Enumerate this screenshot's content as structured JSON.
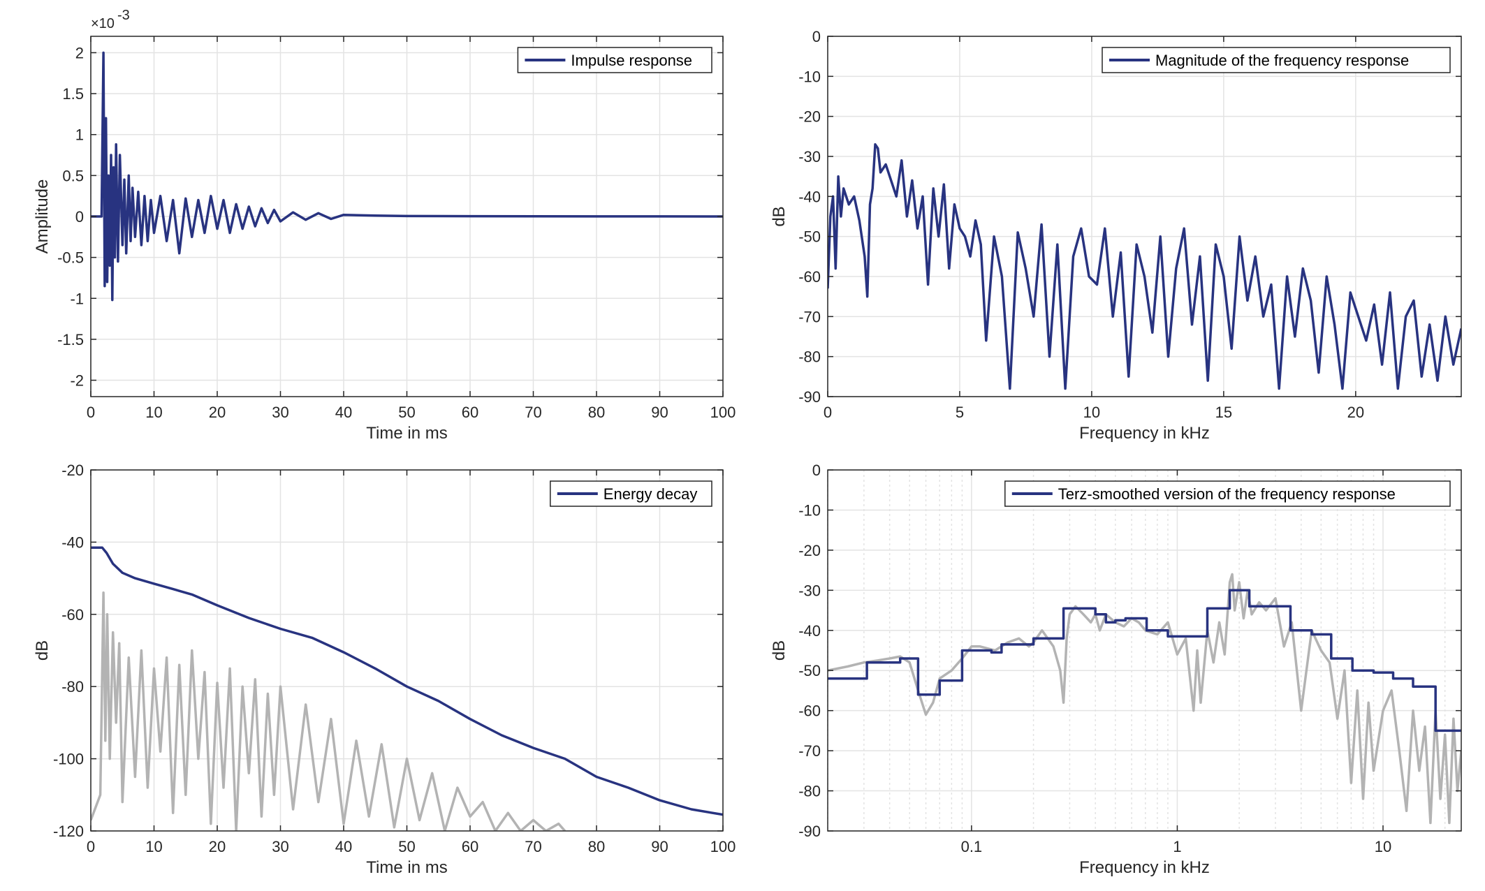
{
  "colors": {
    "series": "#283380",
    "gray": "#b3b3b3",
    "grid": "#e3e3e3",
    "axis": "#262626"
  },
  "chart_data": [
    {
      "type": "line",
      "title": "",
      "xlabel": "Time in ms",
      "ylabel": "Amplitude",
      "exponent_label": "×10",
      "exponent_power": "-3",
      "xlim": [
        0,
        100
      ],
      "ylim": [
        -2.2,
        2.2
      ],
      "xticks": [
        0,
        10,
        20,
        30,
        40,
        50,
        60,
        70,
        80,
        90,
        100
      ],
      "yticks": [
        -2,
        -1.5,
        -1,
        -0.5,
        0,
        0.5,
        1,
        1.5,
        2
      ],
      "ytick_labels": [
        "-2",
        "-1.5",
        "-1",
        "-0.5",
        "0",
        "0.5",
        "1",
        "1.5",
        "2"
      ],
      "grid": true,
      "legend_position": "top-right",
      "series": [
        {
          "name": "Impulse response",
          "x": [
            0,
            1.7,
            2.0,
            2.2,
            2.4,
            2.6,
            2.8,
            3.0,
            3.2,
            3.4,
            3.6,
            3.8,
            4.0,
            4.3,
            4.6,
            5.0,
            5.3,
            5.6,
            6.0,
            6.3,
            6.6,
            7.0,
            7.5,
            8.0,
            8.5,
            9.0,
            9.5,
            10,
            11,
            12,
            13,
            14,
            15,
            16,
            17,
            18,
            19,
            20,
            21,
            22,
            23,
            24,
            25,
            26,
            27,
            28,
            29,
            30,
            32,
            34,
            36,
            38,
            40,
            45,
            50,
            60,
            70,
            80,
            90,
            100
          ],
          "y": [
            0,
            0,
            2.0,
            -0.85,
            1.2,
            -0.8,
            0.5,
            -0.6,
            0.75,
            -1.02,
            0.6,
            -0.5,
            0.88,
            -0.55,
            0.75,
            -0.35,
            0.45,
            -0.45,
            0.5,
            -0.3,
            0.35,
            -0.25,
            0.3,
            -0.35,
            0.25,
            -0.3,
            0.2,
            -0.2,
            0.25,
            -0.3,
            0.2,
            -0.45,
            0.22,
            -0.25,
            0.2,
            -0.2,
            0.25,
            -0.15,
            0.2,
            -0.2,
            0.15,
            -0.15,
            0.12,
            -0.12,
            0.1,
            -0.08,
            0.08,
            -0.06,
            0.05,
            -0.04,
            0.04,
            -0.03,
            0.02,
            0.01,
            0.005,
            0.003,
            0.002,
            0.001,
            0.001,
            0
          ]
        }
      ]
    },
    {
      "type": "line",
      "title": "",
      "xlabel": "Frequency in kHz",
      "ylabel": "dB",
      "xlim": [
        0,
        24
      ],
      "ylim": [
        -90,
        0
      ],
      "xticks": [
        0,
        5,
        10,
        15,
        20
      ],
      "yticks": [
        0,
        -10,
        -20,
        -30,
        -40,
        -50,
        -60,
        -70,
        -80,
        -90
      ],
      "grid": true,
      "legend_position": "top-right",
      "series": [
        {
          "name": "Magnitude of the frequency response",
          "x": [
            0,
            0.1,
            0.2,
            0.3,
            0.4,
            0.5,
            0.6,
            0.8,
            1.0,
            1.2,
            1.4,
            1.5,
            1.6,
            1.7,
            1.8,
            1.9,
            2.0,
            2.2,
            2.4,
            2.6,
            2.8,
            3.0,
            3.2,
            3.4,
            3.6,
            3.8,
            4.0,
            4.2,
            4.4,
            4.6,
            4.8,
            5.0,
            5.2,
            5.4,
            5.6,
            5.8,
            6.0,
            6.3,
            6.6,
            6.9,
            7.2,
            7.5,
            7.8,
            8.1,
            8.4,
            8.7,
            9.0,
            9.3,
            9.6,
            9.9,
            10.2,
            10.5,
            10.8,
            11.1,
            11.4,
            11.7,
            12.0,
            12.3,
            12.6,
            12.9,
            13.2,
            13.5,
            13.8,
            14.1,
            14.4,
            14.7,
            15.0,
            15.3,
            15.6,
            15.9,
            16.2,
            16.5,
            16.8,
            17.1,
            17.4,
            17.7,
            18.0,
            18.3,
            18.6,
            18.9,
            19.2,
            19.5,
            19.8,
            20.1,
            20.4,
            20.7,
            21.0,
            21.3,
            21.6,
            21.9,
            22.2,
            22.5,
            22.8,
            23.1,
            23.4,
            23.7,
            24.0
          ],
          "y": [
            -63,
            -45,
            -40,
            -58,
            -35,
            -45,
            -38,
            -42,
            -40,
            -46,
            -55,
            -65,
            -42,
            -38,
            -27,
            -28,
            -34,
            -32,
            -36,
            -40,
            -31,
            -45,
            -36,
            -48,
            -40,
            -62,
            -38,
            -50,
            -37,
            -58,
            -42,
            -48,
            -50,
            -55,
            -46,
            -52,
            -76,
            -50,
            -60,
            -88,
            -49,
            -58,
            -70,
            -47,
            -80,
            -52,
            -88,
            -55,
            -48,
            -60,
            -62,
            -48,
            -70,
            -54,
            -85,
            -52,
            -60,
            -74,
            -50,
            -80,
            -58,
            -48,
            -72,
            -55,
            -86,
            -52,
            -60,
            -78,
            -50,
            -66,
            -55,
            -70,
            -62,
            -88,
            -60,
            -75,
            -58,
            -66,
            -84,
            -60,
            -72,
            -88,
            -64,
            -70,
            -76,
            -67,
            -82,
            -64,
            -88,
            -70,
            -66,
            -85,
            -72,
            -86,
            -70,
            -82,
            -73
          ]
        }
      ]
    },
    {
      "type": "line",
      "title": "",
      "xlabel": "Time in ms",
      "ylabel": "dB",
      "xlim": [
        0,
        100
      ],
      "ylim": [
        -120,
        -20
      ],
      "xticks": [
        0,
        10,
        20,
        30,
        40,
        50,
        60,
        70,
        80,
        90,
        100
      ],
      "yticks": [
        -20,
        -40,
        -60,
        -80,
        -100,
        -120
      ],
      "grid": true,
      "legend_position": "top-right",
      "series": [
        {
          "name": "Energy decay",
          "x": [
            0,
            1.8,
            2.5,
            3.5,
            5,
            7,
            10,
            13,
            16,
            20,
            25,
            30,
            35,
            40,
            45,
            50,
            55,
            60,
            65,
            70,
            75,
            80,
            85,
            90,
            95,
            100
          ],
          "y": [
            -41.5,
            -41.5,
            -43,
            -46,
            -48.5,
            -50,
            -51.5,
            -53,
            -54.5,
            -57.5,
            -61,
            -64,
            -66.5,
            -70.5,
            -75,
            -80,
            -84,
            -89,
            -93.5,
            -97,
            -100,
            -105,
            -108,
            -111.5,
            -114,
            -115.5
          ]
        },
        {
          "name": "",
          "color_key": "gray",
          "x": [
            0,
            1.5,
            2.0,
            2.3,
            2.6,
            3.0,
            3.5,
            4.0,
            4.5,
            5.0,
            6.0,
            7.0,
            8.0,
            9.0,
            10,
            11,
            12,
            13,
            14,
            15,
            16,
            17,
            18,
            19,
            20,
            21,
            22,
            23,
            24,
            25,
            26,
            27,
            28,
            29,
            30,
            32,
            34,
            36,
            38,
            40,
            42,
            44,
            46,
            48,
            50,
            52,
            54,
            56,
            58,
            60,
            62,
            64,
            66,
            68,
            70,
            72,
            74,
            75
          ],
          "y": [
            -117,
            -110,
            -54,
            -95,
            -60,
            -100,
            -65,
            -90,
            -68,
            -112,
            -72,
            -105,
            -70,
            -108,
            -75,
            -98,
            -72,
            -115,
            -74,
            -110,
            -70,
            -100,
            -76,
            -118,
            -79,
            -108,
            -75,
            -120,
            -80,
            -104,
            -78,
            -116,
            -82,
            -110,
            -80,
            -114,
            -85,
            -112,
            -89,
            -118,
            -95,
            -116,
            -96,
            -119,
            -100,
            -117,
            -104,
            -120,
            -108,
            -116,
            -112,
            -120,
            -115,
            -120,
            -117,
            -120,
            -118,
            -120
          ]
        }
      ]
    },
    {
      "type": "line",
      "title": "",
      "xlabel": "Frequency in kHz",
      "ylabel": "dB",
      "x_scale": "log",
      "xlim": [
        0.02,
        24
      ],
      "ylim": [
        -90,
        0
      ],
      "xticks": [
        0.1,
        1,
        10
      ],
      "xtick_labels": [
        "0.1",
        "1",
        "10"
      ],
      "yticks": [
        0,
        -10,
        -20,
        -30,
        -40,
        -50,
        -60,
        -70,
        -80,
        -90
      ],
      "grid": true,
      "legend_position": "top-right",
      "series": [
        {
          "name": "Terz-smoothed version of the frequency response",
          "steps": [
            [
              0.02,
              0.031,
              -52
            ],
            [
              0.031,
              0.045,
              -48
            ],
            [
              0.045,
              0.055,
              -47
            ],
            [
              0.055,
              0.07,
              -56
            ],
            [
              0.07,
              0.09,
              -52.5
            ],
            [
              0.09,
              0.125,
              -45
            ],
            [
              0.125,
              0.14,
              -45.5
            ],
            [
              0.14,
              0.2,
              -43.5
            ],
            [
              0.2,
              0.28,
              -42
            ],
            [
              0.28,
              0.4,
              -34.5
            ],
            [
              0.4,
              0.45,
              -36
            ],
            [
              0.45,
              0.5,
              -38
            ],
            [
              0.5,
              0.56,
              -37.5
            ],
            [
              0.56,
              0.71,
              -37
            ],
            [
              0.71,
              0.9,
              -40
            ],
            [
              0.9,
              1.4,
              -41.5
            ],
            [
              1.4,
              1.8,
              -34.5
            ],
            [
              1.8,
              2.24,
              -30
            ],
            [
              2.24,
              2.8,
              -34
            ],
            [
              2.8,
              3.55,
              -34
            ],
            [
              3.55,
              4.5,
              -40
            ],
            [
              4.5,
              5.6,
              -41
            ],
            [
              5.6,
              7.1,
              -47
            ],
            [
              7.1,
              9.0,
              -50
            ],
            [
              9.0,
              11.2,
              -50.5
            ],
            [
              11.2,
              14.0,
              -52
            ],
            [
              14.0,
              18.0,
              -54
            ],
            [
              18.0,
              24.0,
              -65
            ]
          ]
        },
        {
          "name": "",
          "color_key": "gray",
          "x": [
            0.02,
            0.025,
            0.03,
            0.035,
            0.04,
            0.045,
            0.05,
            0.055,
            0.06,
            0.065,
            0.07,
            0.08,
            0.09,
            0.1,
            0.11,
            0.13,
            0.15,
            0.17,
            0.19,
            0.2,
            0.22,
            0.25,
            0.27,
            0.28,
            0.29,
            0.3,
            0.32,
            0.35,
            0.38,
            0.4,
            0.42,
            0.45,
            0.5,
            0.55,
            0.6,
            0.65,
            0.7,
            0.8,
            0.9,
            1.0,
            1.1,
            1.2,
            1.25,
            1.3,
            1.4,
            1.5,
            1.6,
            1.7,
            1.8,
            1.85,
            1.9,
            2.0,
            2.1,
            2.2,
            2.3,
            2.5,
            2.7,
            3.0,
            3.3,
            3.6,
            4.0,
            4.5,
            5.0,
            5.5,
            6.0,
            6.5,
            7.0,
            7.5,
            8.0,
            8.5,
            9.0,
            10,
            11,
            12,
            13,
            14,
            15,
            16,
            17,
            18,
            19,
            20,
            21,
            22,
            23,
            24
          ],
          "y": [
            -50,
            -49,
            -48,
            -47.5,
            -47,
            -46.5,
            -48,
            -55,
            -61,
            -58,
            -52,
            -50,
            -47,
            -44,
            -44,
            -45,
            -43,
            -42,
            -44,
            -43,
            -40,
            -44,
            -50,
            -58,
            -42,
            -36,
            -34,
            -36,
            -38,
            -36,
            -40,
            -36,
            -38,
            -39,
            -37,
            -38,
            -40,
            -41,
            -38,
            -46,
            -42,
            -60,
            -45,
            -58,
            -40,
            -48,
            -38,
            -46,
            -28,
            -26,
            -35,
            -28,
            -37,
            -30,
            -36,
            -33,
            -35,
            -32,
            -44,
            -38,
            -60,
            -40,
            -45,
            -48,
            -62,
            -50,
            -78,
            -55,
            -82,
            -58,
            -75,
            -60,
            -55,
            -70,
            -85,
            -60,
            -75,
            -64,
            -88,
            -60,
            -82,
            -66,
            -88,
            -62,
            -80,
            -70
          ]
        }
      ]
    }
  ]
}
